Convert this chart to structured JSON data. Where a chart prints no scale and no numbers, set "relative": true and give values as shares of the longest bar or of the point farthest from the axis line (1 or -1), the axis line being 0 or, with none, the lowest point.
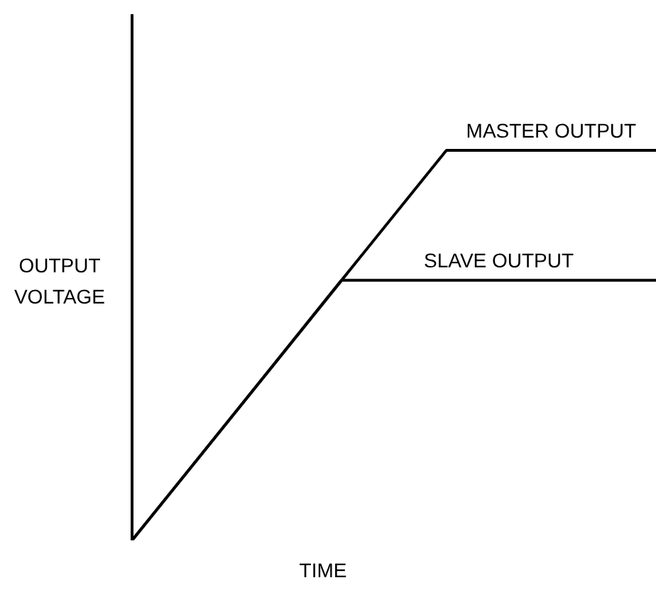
{
  "chart_data": {
    "type": "line",
    "relative": true,
    "xlabel": "TIME",
    "ylabel": "OUTPUT VOLTAGE",
    "categories": [
      null,
      null,
      null,
      null,
      null,
      null
    ],
    "series": [
      {
        "name": "MASTER OUTPUT",
        "color": "#000000",
        "values": [
          0,
          0.333,
          0.667,
          1,
          1,
          1
        ]
      },
      {
        "name": "SLAVE OUTPUT",
        "color": "#000000",
        "values": [
          0,
          0.333,
          0.667,
          0.667,
          0.667,
          0.667
        ]
      }
    ]
  }
}
